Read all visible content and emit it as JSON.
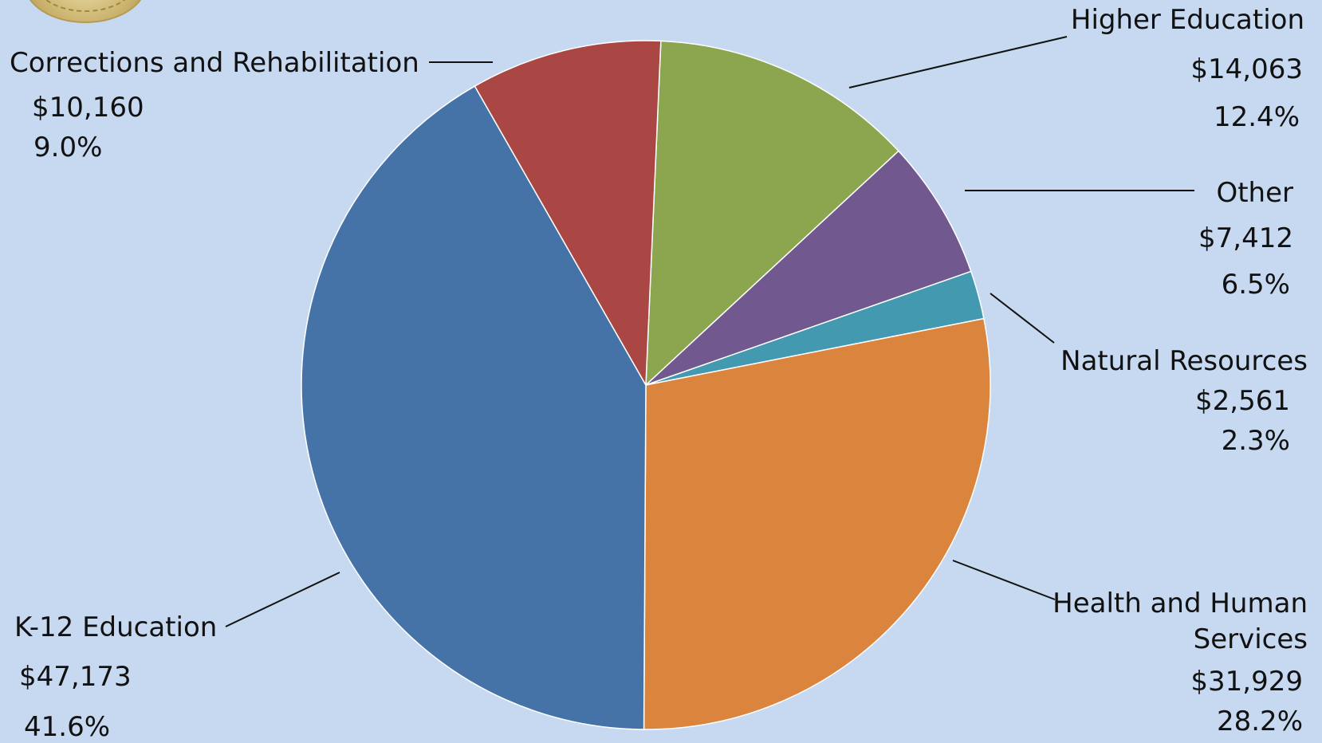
{
  "chart_data": {
    "type": "pie",
    "start_angle_deg": 87.5,
    "slices": [
      {
        "label": "Higher Education",
        "value": 14063,
        "value_text": "$14,063",
        "percent_text": "12.4%",
        "color": "#8ba64e"
      },
      {
        "label": "Other",
        "value": 7412,
        "value_text": "$7,412",
        "percent_text": "6.5%",
        "color": "#71588f"
      },
      {
        "label": "Natural Resources",
        "value": 2561,
        "value_text": "$2,561",
        "percent_text": "2.3%",
        "color": "#4399b0"
      },
      {
        "label": "Health and Human Services",
        "value": 31929,
        "value_text": "$31,929",
        "percent_text": "28.2%",
        "color": "#db843d"
      },
      {
        "label": "K-12 Education",
        "value": 47173,
        "value_text": "$47,173",
        "percent_text": "41.6%",
        "color": "#4572a7"
      },
      {
        "label": "Corrections and Rehabilitation",
        "value": 10160,
        "value_text": "$10,160",
        "percent_text": "9.0%",
        "color": "#aa4643"
      }
    ]
  },
  "labels": {
    "higher_ed_name": "Higher Education",
    "other_name": "Other",
    "natural_name": "Natural Resources",
    "hhs_name_line1": "Health and Human",
    "hhs_name_line2": "Services",
    "k12_name": "K-12 Education",
    "corrections_name": "Corrections and Rehabilitation"
  },
  "background_color": "#c6d9f0"
}
